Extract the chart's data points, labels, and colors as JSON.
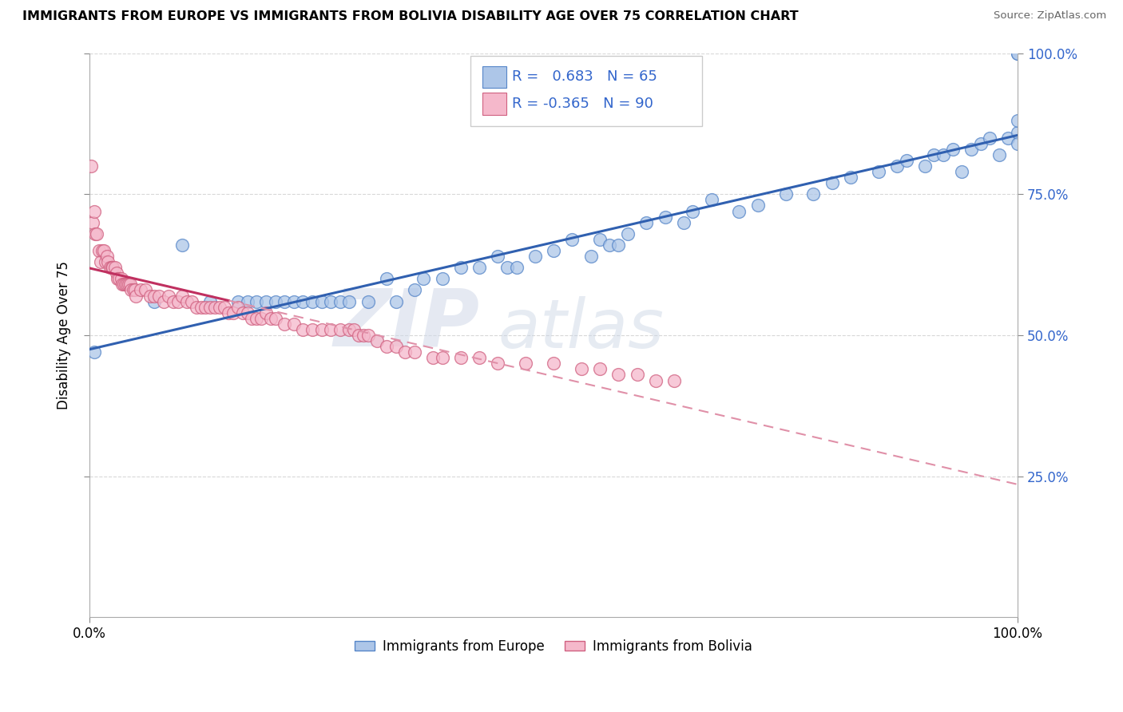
{
  "title": "IMMIGRANTS FROM EUROPE VS IMMIGRANTS FROM BOLIVIA DISABILITY AGE OVER 75 CORRELATION CHART",
  "source": "Source: ZipAtlas.com",
  "ylabel": "Disability Age Over 75",
  "r_europe": 0.683,
  "n_europe": 65,
  "r_bolivia": -0.365,
  "n_bolivia": 90,
  "color_europe": "#adc6e8",
  "color_europe_edge": "#5585c8",
  "color_europe_line": "#3060b0",
  "color_bolivia": "#f5b8cb",
  "color_bolivia_edge": "#d06080",
  "color_bolivia_line": "#c03060",
  "color_bolivia_dash": "#e090a8",
  "watermark_zip": "ZIP",
  "watermark_atlas": "atlas",
  "legend_text_color": "#3366cc",
  "ytick_color": "#3366cc",
  "europe_x": [
    0.5,
    7,
    10,
    13,
    16,
    17,
    18,
    19,
    20,
    21,
    22,
    23,
    24,
    25,
    26,
    27,
    28,
    30,
    32,
    33,
    35,
    36,
    38,
    40,
    42,
    44,
    45,
    46,
    48,
    50,
    52,
    54,
    55,
    56,
    57,
    58,
    60,
    62,
    64,
    65,
    67,
    70,
    72,
    75,
    78,
    80,
    82,
    85,
    87,
    88,
    90,
    91,
    92,
    93,
    94,
    95,
    96,
    97,
    98,
    99,
    100,
    100,
    100,
    100,
    100
  ],
  "europe_y": [
    47,
    56,
    66,
    56,
    56,
    56,
    56,
    56,
    56,
    56,
    56,
    56,
    56,
    56,
    56,
    56,
    56,
    56,
    60,
    56,
    58,
    60,
    60,
    62,
    62,
    64,
    62,
    62,
    64,
    65,
    67,
    64,
    67,
    66,
    66,
    68,
    70,
    71,
    70,
    72,
    74,
    72,
    73,
    75,
    75,
    77,
    78,
    79,
    80,
    81,
    80,
    82,
    82,
    83,
    79,
    83,
    84,
    85,
    82,
    85,
    86,
    88,
    100,
    100,
    84
  ],
  "bolivia_x": [
    0.2,
    0.3,
    0.5,
    0.6,
    0.8,
    1.0,
    1.2,
    1.4,
    1.5,
    1.7,
    1.9,
    2.0,
    2.2,
    2.4,
    2.5,
    2.7,
    2.9,
    3.0,
    3.2,
    3.4,
    3.5,
    3.7,
    3.9,
    4.0,
    4.2,
    4.4,
    4.5,
    4.7,
    4.9,
    5.0,
    5.5,
    6.0,
    6.5,
    7.0,
    7.5,
    8.0,
    8.5,
    9.0,
    9.5,
    10.0,
    10.5,
    11.0,
    11.5,
    12.0,
    12.5,
    13.0,
    13.5,
    14.0,
    14.5,
    15.0,
    15.5,
    16.0,
    16.5,
    17.0,
    17.5,
    18.0,
    18.5,
    19.0,
    19.5,
    20.0,
    21.0,
    22.0,
    23.0,
    24.0,
    25.0,
    26.0,
    27.0,
    28.0,
    28.5,
    29.0,
    29.5,
    30.0,
    31.0,
    32.0,
    33.0,
    34.0,
    35.0,
    37.0,
    38.0,
    40.0,
    42.0,
    44.0,
    47.0,
    50.0,
    53.0,
    55.0,
    57.0,
    59.0,
    61.0,
    63.0
  ],
  "bolivia_y": [
    80,
    70,
    72,
    68,
    68,
    65,
    63,
    65,
    65,
    63,
    64,
    63,
    62,
    62,
    62,
    62,
    61,
    60,
    60,
    60,
    59,
    59,
    59,
    59,
    59,
    59,
    58,
    58,
    58,
    57,
    58,
    58,
    57,
    57,
    57,
    56,
    57,
    56,
    56,
    57,
    56,
    56,
    55,
    55,
    55,
    55,
    55,
    55,
    55,
    54,
    54,
    55,
    54,
    54,
    53,
    53,
    53,
    54,
    53,
    53,
    52,
    52,
    51,
    51,
    51,
    51,
    51,
    51,
    51,
    50,
    50,
    50,
    49,
    48,
    48,
    47,
    47,
    46,
    46,
    46,
    46,
    45,
    45,
    45,
    44,
    44,
    43,
    43,
    42,
    42
  ]
}
